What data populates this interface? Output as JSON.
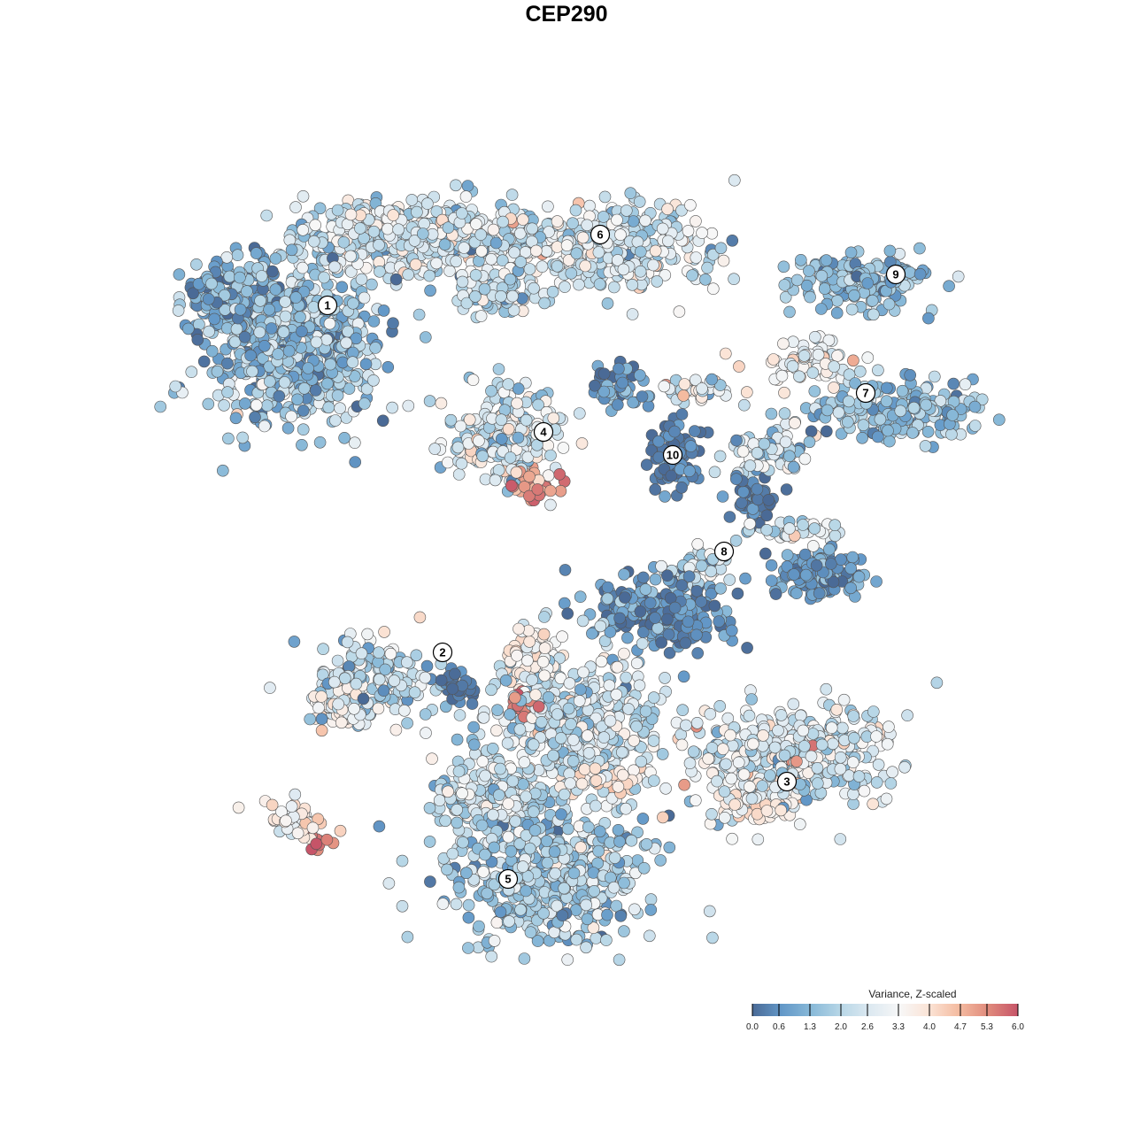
{
  "chart_data": {
    "type": "scatter",
    "title": "CEP290",
    "xlabel": "",
    "ylabel": "",
    "grid": false,
    "axes_visible": false,
    "cluster_labels": [
      "1",
      "2",
      "3",
      "4",
      "5",
      "6",
      "7",
      "8",
      "9",
      "10"
    ],
    "colorbar": {
      "title": "Variance, Z-scaled",
      "range": [
        0.0,
        6.0
      ],
      "ticks": [
        "0.0",
        "0.6",
        "1.3",
        "2.0",
        "2.6",
        "3.3",
        "4.0",
        "4.7",
        "5.3",
        "6.0"
      ],
      "colors": [
        "#4a6a96",
        "#6398c8",
        "#88b9d8",
        "#b8d7e7",
        "#dde9f1",
        "#f7f7f7",
        "#fbe3d5",
        "#f4bba0",
        "#e08a7c",
        "#c65468"
      ],
      "placement": "bottom-right"
    }
  }
}
